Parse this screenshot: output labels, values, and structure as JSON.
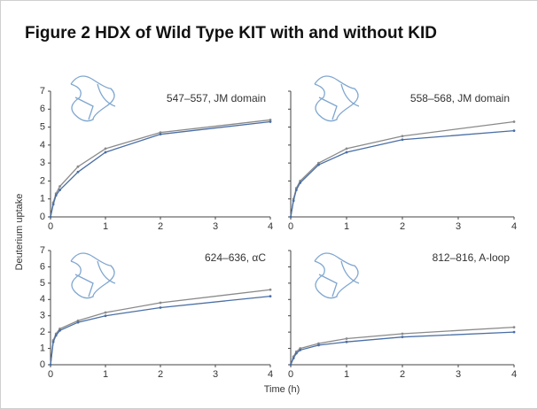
{
  "figure_title": "Figure 2  HDX of Wild Type KIT with and without KID",
  "ylabel": "Deuterium uptake",
  "xlabel": "Time (h)",
  "chart_data": [
    {
      "type": "line",
      "subtitle": "547–557, JM domain",
      "x": [
        0,
        0.05,
        0.1,
        0.17,
        0.5,
        1,
        2,
        4
      ],
      "series": [
        {
          "color": "#8a8a8a",
          "values": [
            0,
            0.8,
            1.3,
            1.7,
            2.8,
            3.8,
            4.7,
            5.4
          ]
        },
        {
          "color": "#4a6fa5",
          "values": [
            0,
            0.7,
            1.2,
            1.5,
            2.5,
            3.6,
            4.6,
            5.3
          ]
        }
      ],
      "xlim": [
        0,
        4
      ],
      "xticks": [
        0,
        1,
        2,
        3,
        4
      ],
      "ylim": [
        0,
        7
      ],
      "yticks": [
        0,
        1,
        2,
        3,
        4,
        5,
        6,
        7
      ]
    },
    {
      "type": "line",
      "subtitle": "558–568, JM domain",
      "x": [
        0,
        0.05,
        0.1,
        0.17,
        0.5,
        1,
        2,
        4
      ],
      "series": [
        {
          "color": "#8a8a8a",
          "values": [
            0,
            1.0,
            1.6,
            2.0,
            3.0,
            3.8,
            4.5,
            5.3
          ]
        },
        {
          "color": "#4a6fa5",
          "values": [
            0,
            0.9,
            1.5,
            1.9,
            2.9,
            3.6,
            4.3,
            4.8
          ]
        }
      ],
      "xlim": [
        0,
        4
      ],
      "xticks": [
        0,
        1,
        2,
        3,
        4
      ],
      "ylim": [
        0,
        7
      ],
      "yticks": [
        0,
        1,
        2,
        3,
        4,
        5,
        6,
        7
      ]
    },
    {
      "type": "line",
      "subtitle": "624–636, αC",
      "x": [
        0,
        0.05,
        0.1,
        0.17,
        0.5,
        1,
        2,
        4
      ],
      "series": [
        {
          "color": "#8a8a8a",
          "values": [
            0,
            1.5,
            1.9,
            2.2,
            2.7,
            3.2,
            3.8,
            4.6
          ]
        },
        {
          "color": "#4a6fa5",
          "values": [
            0,
            1.4,
            1.8,
            2.1,
            2.6,
            3.0,
            3.5,
            4.2
          ]
        }
      ],
      "xlim": [
        0,
        4
      ],
      "xticks": [
        0,
        1,
        2,
        3,
        4
      ],
      "ylim": [
        0,
        7
      ],
      "yticks": [
        0,
        1,
        2,
        3,
        4,
        5,
        6,
        7
      ]
    },
    {
      "type": "line",
      "subtitle": "812–816, A-loop",
      "x": [
        0,
        0.05,
        0.1,
        0.17,
        0.5,
        1,
        2,
        4
      ],
      "series": [
        {
          "color": "#8a8a8a",
          "values": [
            0,
            0.5,
            0.8,
            1.0,
            1.3,
            1.6,
            1.9,
            2.3
          ]
        },
        {
          "color": "#4a6fa5",
          "values": [
            0,
            0.4,
            0.7,
            0.9,
            1.2,
            1.4,
            1.7,
            2.0
          ]
        }
      ],
      "xlim": [
        0,
        4
      ],
      "xticks": [
        0,
        1,
        2,
        3,
        4
      ],
      "ylim": [
        0,
        7
      ],
      "yticks": [
        0,
        1,
        2,
        3,
        4,
        5,
        6,
        7
      ]
    }
  ]
}
